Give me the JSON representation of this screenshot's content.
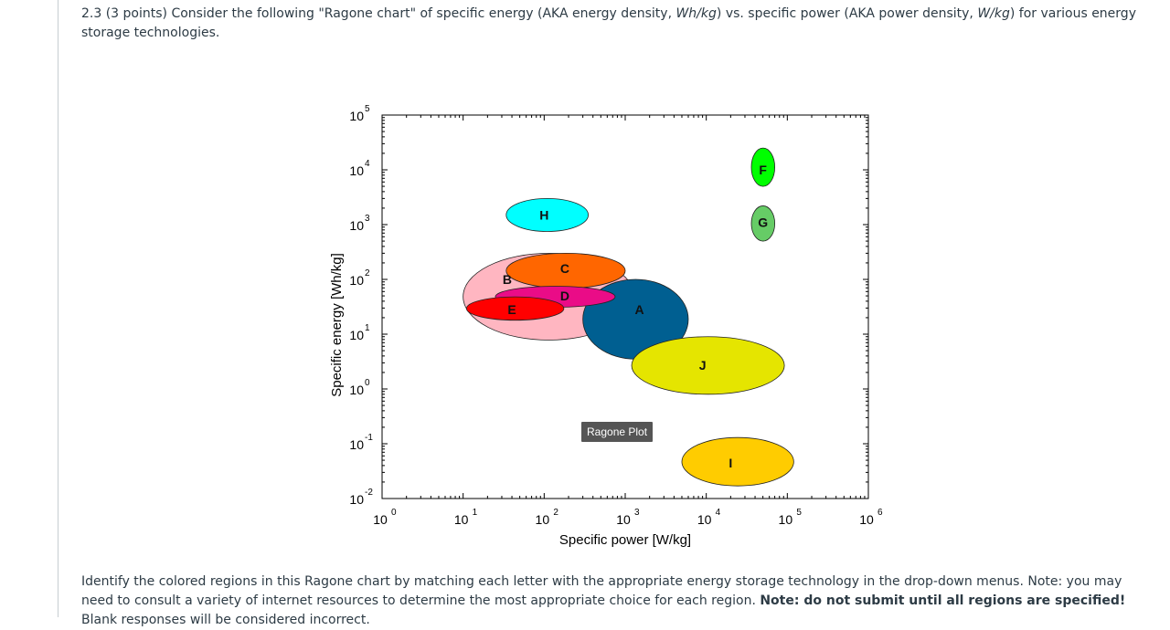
{
  "question": {
    "number": "2.3",
    "points": "(3 points)",
    "text_before": "Consider the following \"Ragone chart\" of specific energy (AKA energy density, ",
    "unit1": "Wh/kg",
    "text_middle": ") vs. specific power (AKA power density, ",
    "unit2": "W/kg",
    "text_after": ") for various energy storage technologies."
  },
  "chart_data": {
    "type": "scatter",
    "title": "",
    "xlabel": "Specific power [W/kg]",
    "ylabel": "Specific energy [Wh/kg]",
    "xscale": "log",
    "yscale": "log",
    "xlim": [
      1,
      1000000
    ],
    "ylim": [
      0.01,
      100000
    ],
    "xticks": [
      {
        "base": "10",
        "exp": "0"
      },
      {
        "base": "10",
        "exp": "1"
      },
      {
        "base": "10",
        "exp": "2"
      },
      {
        "base": "10",
        "exp": "3"
      },
      {
        "base": "10",
        "exp": "4"
      },
      {
        "base": "10",
        "exp": "5"
      },
      {
        "base": "10",
        "exp": "6"
      }
    ],
    "yticks": [
      {
        "base": "10",
        "exp": "-2"
      },
      {
        "base": "10",
        "exp": "-1"
      },
      {
        "base": "10",
        "exp": "0"
      },
      {
        "base": "10",
        "exp": "1"
      },
      {
        "base": "10",
        "exp": "2"
      },
      {
        "base": "10",
        "exp": "3"
      },
      {
        "base": "10",
        "exp": "4"
      },
      {
        "base": "10",
        "exp": "5"
      }
    ],
    "regions": [
      {
        "label": "B",
        "color": "#ffb6c1",
        "x_range": [
          10,
          1300
        ],
        "y_range": [
          7.8,
          300
        ],
        "label_x": 35,
        "label_y": 100
      },
      {
        "label": "A",
        "color": "#005f91",
        "x_range": [
          300,
          6000
        ],
        "y_range": [
          3.5,
          100
        ],
        "label_x": 1500,
        "label_y": 28
      },
      {
        "label": "C",
        "color": "#ff6600",
        "x_range": [
          34,
          1000
        ],
        "y_range": [
          69,
          300
        ],
        "label_x": 180,
        "label_y": 160
      },
      {
        "label": "D",
        "color": "#ea0c87",
        "x_range": [
          25,
          750
        ],
        "y_range": [
          31,
          75
        ],
        "label_x": 180,
        "label_y": 50
      },
      {
        "label": "E",
        "color": "#ff0000",
        "x_range": [
          11,
          175
        ],
        "y_range": [
          18,
          48
        ],
        "label_x": 40,
        "label_y": 28
      },
      {
        "label": "H",
        "color": "#00ffff",
        "x_range": [
          34,
          350
        ],
        "y_range": [
          750,
          3000
        ],
        "label_x": 100,
        "label_y": 1500
      },
      {
        "label": "F",
        "color": "#00ff00",
        "x_range": [
          36000,
          70000
        ],
        "y_range": [
          5000,
          25000
        ],
        "label_x": 50000,
        "label_y": 10000
      },
      {
        "label": "G",
        "color": "#66cc66",
        "x_range": [
          36000,
          70000
        ],
        "y_range": [
          500,
          2200
        ],
        "label_x": 50000,
        "label_y": 1100
      },
      {
        "label": "J",
        "color": "#e5e500",
        "x_range": [
          1200,
          92000
        ],
        "y_range": [
          0.8,
          9
        ],
        "label_x": 9000,
        "label_y": 2.7
      },
      {
        "label": "I",
        "color": "#ffcc00",
        "x_range": [
          5000,
          120000
        ],
        "y_range": [
          0.017,
          0.13
        ],
        "label_x": 20000,
        "label_y": 0.045
      }
    ]
  },
  "tooltip": "Ragone Plot",
  "instructions": {
    "text": "Identify the colored regions in this Ragone chart by matching each letter with the appropriate energy storage technology in the drop-down menus. Note: you may need to consult a variety of internet resources to determine the most appropriate choice for each region. ",
    "bold": "Note: do not submit until all regions are specified!",
    "tail": " Blank responses will be considered incorrect."
  }
}
